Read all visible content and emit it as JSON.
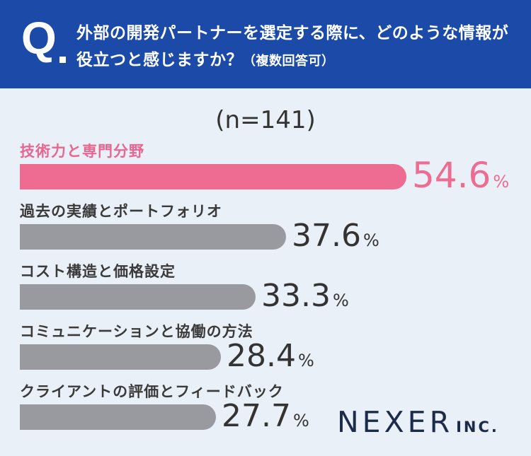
{
  "header": {
    "q_mark": "Q",
    "question": "外部の開発パートナーを選定する際に、どのような情報が役立つと感じますか？",
    "note": "（複数回答可）"
  },
  "sample_size": "(n=141)",
  "colors": {
    "header_bg": "#1b4aa8",
    "highlight": "#ee6b91",
    "bar": "#999a9f"
  },
  "chart_data": {
    "type": "bar",
    "orientation": "horizontal",
    "categories": [
      "技術力と専門分野",
      "過去の実績とポートフォリオ",
      "コスト構造と価格設定",
      "コミュニケーションと協働の方法",
      "クライアントの評価とフィードバック"
    ],
    "values": [
      54.6,
      37.6,
      33.3,
      28.4,
      27.7
    ],
    "value_labels": [
      "54.6",
      "37.6",
      "33.3",
      "28.4",
      "27.7"
    ],
    "unit": "%",
    "xlim": [
      0,
      100
    ],
    "highlight_index": 0
  },
  "logo": {
    "main": "NEXER",
    "sub": "INC."
  }
}
